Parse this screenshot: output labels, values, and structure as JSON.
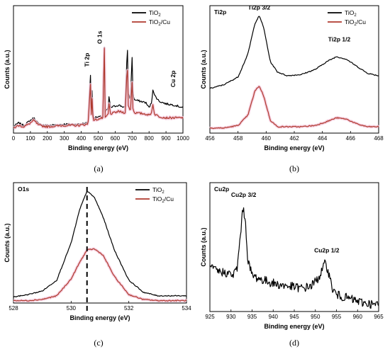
{
  "colors": {
    "tio2": "#000000",
    "tio2cu": "#b03a2e",
    "shadow": "#f3c4d8"
  },
  "chart_data": [
    {
      "id": "a",
      "type": "line",
      "caption": "(a)",
      "xlabel": "Binding energy (eV)",
      "ylabel": "Counts (a.u.)",
      "xlim": [
        0,
        1000
      ],
      "xticks": [
        "0",
        "100",
        "200",
        "300",
        "400",
        "500",
        "600",
        "700",
        "800",
        "900",
        "1000"
      ],
      "legend": {
        "placement": "top-right",
        "entries": [
          [
            "TiO",
            "2",
            ""
          ],
          [
            "TiO",
            "2",
            "/Cu"
          ]
        ]
      },
      "annotations": [
        {
          "text": "Ti 2p",
          "x": 445,
          "y": 0.52,
          "rot": -90
        },
        {
          "text": "O 1s",
          "x": 520,
          "y": 0.7,
          "rot": -90
        },
        {
          "text": "Cu 2p",
          "x": 955,
          "y": 0.36,
          "rot": -90
        }
      ],
      "series": [
        {
          "name": "TiO2",
          "points": [
            [
              0,
              0.05
            ],
            [
              30,
              0.08
            ],
            [
              60,
              0.06
            ],
            [
              90,
              0.09
            ],
            [
              120,
              0.12
            ],
            [
              150,
              0.07
            ],
            [
              200,
              0.06
            ],
            [
              300,
              0.07
            ],
            [
              380,
              0.07
            ],
            [
              440,
              0.08
            ],
            [
              455,
              0.47
            ],
            [
              458,
              0.12
            ],
            [
              463,
              0.35
            ],
            [
              470,
              0.12
            ],
            [
              530,
              0.13
            ],
            [
              535,
              0.86
            ],
            [
              540,
              0.16
            ],
            [
              560,
              0.2
            ],
            [
              565,
              0.32
            ],
            [
              570,
              0.2
            ],
            [
              620,
              0.22
            ],
            [
              660,
              0.2
            ],
            [
              672,
              0.72
            ],
            [
              676,
              0.32
            ],
            [
              690,
              0.26
            ],
            [
              700,
              0.6
            ],
            [
              705,
              0.3
            ],
            [
              715,
              0.26
            ],
            [
              780,
              0.24
            ],
            [
              800,
              0.2
            ],
            [
              815,
              0.24
            ],
            [
              824,
              0.36
            ],
            [
              830,
              0.3
            ],
            [
              860,
              0.25
            ],
            [
              900,
              0.23
            ],
            [
              950,
              0.22
            ],
            [
              1000,
              0.2
            ]
          ]
        },
        {
          "name": "TiO2/Cu",
          "points": [
            [
              0,
              0.04
            ],
            [
              30,
              0.06
            ],
            [
              60,
              0.05
            ],
            [
              90,
              0.07
            ],
            [
              120,
              0.1
            ],
            [
              150,
              0.06
            ],
            [
              200,
              0.05
            ],
            [
              300,
              0.06
            ],
            [
              380,
              0.06
            ],
            [
              440,
              0.07
            ],
            [
              455,
              0.4
            ],
            [
              458,
              0.1
            ],
            [
              463,
              0.28
            ],
            [
              470,
              0.1
            ],
            [
              530,
              0.12
            ],
            [
              535,
              0.86
            ],
            [
              540,
              0.12
            ],
            [
              560,
              0.15
            ],
            [
              565,
              0.26
            ],
            [
              570,
              0.15
            ],
            [
              620,
              0.17
            ],
            [
              660,
              0.16
            ],
            [
              672,
              0.56
            ],
            [
              676,
              0.22
            ],
            [
              690,
              0.17
            ],
            [
              700,
              0.4
            ],
            [
              705,
              0.18
            ],
            [
              715,
              0.16
            ],
            [
              780,
              0.15
            ],
            [
              800,
              0.14
            ],
            [
              815,
              0.16
            ],
            [
              824,
              0.24
            ],
            [
              830,
              0.15
            ],
            [
              860,
              0.13
            ],
            [
              900,
              0.12
            ],
            [
              950,
              0.12
            ],
            [
              1000,
              0.12
            ]
          ]
        }
      ]
    },
    {
      "id": "b",
      "type": "line",
      "caption": "(b)",
      "xlabel": "Binding energy (eV)",
      "ylabel": "Counts (a.u.)",
      "xlim": [
        456,
        468
      ],
      "xticks": [
        "456",
        "458",
        "460",
        "462",
        "464",
        "466",
        "468"
      ],
      "panel_label": "Ti2p",
      "legend": {
        "placement": "top-right",
        "entries": [
          [
            "TiO",
            "2",
            ""
          ],
          [
            "TiO",
            "2",
            "/Cu"
          ]
        ]
      },
      "annotations": [
        {
          "text": "Ti2p 3/2",
          "x": 459.5,
          "y": 0.97,
          "rot": 0
        },
        {
          "text": "Ti2p 1/2",
          "x": 465.2,
          "y": 0.72,
          "rot": 0
        }
      ],
      "series": [
        {
          "name": "TiO2",
          "points": [
            [
              456,
              0.35
            ],
            [
              457,
              0.38
            ],
            [
              458,
              0.44
            ],
            [
              458.7,
              0.62
            ],
            [
              459.2,
              0.86
            ],
            [
              459.5,
              0.92
            ],
            [
              459.8,
              0.84
            ],
            [
              460.3,
              0.56
            ],
            [
              460.8,
              0.48
            ],
            [
              461.5,
              0.45
            ],
            [
              462.5,
              0.46
            ],
            [
              463.5,
              0.5
            ],
            [
              464.3,
              0.56
            ],
            [
              465,
              0.6
            ],
            [
              465.7,
              0.58
            ],
            [
              466.5,
              0.52
            ],
            [
              467.2,
              0.47
            ],
            [
              468,
              0.45
            ]
          ]
        },
        {
          "name": "TiO2/Cu",
          "points": [
            [
              456,
              0.04
            ],
            [
              457,
              0.04
            ],
            [
              458,
              0.06
            ],
            [
              458.7,
              0.14
            ],
            [
              459.2,
              0.33
            ],
            [
              459.5,
              0.37
            ],
            [
              459.8,
              0.3
            ],
            [
              460.3,
              0.1
            ],
            [
              460.8,
              0.05
            ],
            [
              461.5,
              0.05
            ],
            [
              462.5,
              0.05
            ],
            [
              463.5,
              0.06
            ],
            [
              464.3,
              0.09
            ],
            [
              465,
              0.12
            ],
            [
              465.7,
              0.11
            ],
            [
              466.5,
              0.07
            ],
            [
              467.2,
              0.05
            ],
            [
              468,
              0.05
            ]
          ]
        }
      ]
    },
    {
      "id": "c",
      "type": "line",
      "caption": "(c)",
      "xlabel": "Binding energy (eV)",
      "ylabel": "Counts (a.u.)",
      "xlim": [
        528,
        534
      ],
      "xticks": [
        "528",
        "530",
        "532",
        "534"
      ],
      "panel_label": "O1s",
      "vline": 530.55,
      "legend": {
        "placement": "top-right",
        "entries": [
          [
            "TiO",
            "2",
            ""
          ],
          [
            "TiO",
            "2",
            "/Cu"
          ]
        ]
      },
      "annotations": [],
      "series": [
        {
          "name": "TiO2",
          "points": [
            [
              528,
              0.05
            ],
            [
              528.5,
              0.07
            ],
            [
              529,
              0.1
            ],
            [
              529.5,
              0.19
            ],
            [
              530,
              0.5
            ],
            [
              530.3,
              0.78
            ],
            [
              530.55,
              0.93
            ],
            [
              530.8,
              0.88
            ],
            [
              531.1,
              0.72
            ],
            [
              531.5,
              0.44
            ],
            [
              532,
              0.19
            ],
            [
              532.5,
              0.09
            ],
            [
              533,
              0.06
            ],
            [
              534,
              0.06
            ]
          ]
        },
        {
          "name": "TiO2/Cu",
          "points": [
            [
              528,
              0.02
            ],
            [
              528.5,
              0.02
            ],
            [
              529,
              0.03
            ],
            [
              529.5,
              0.06
            ],
            [
              530,
              0.2
            ],
            [
              530.3,
              0.34
            ],
            [
              530.55,
              0.44
            ],
            [
              530.8,
              0.45
            ],
            [
              531.1,
              0.4
            ],
            [
              531.5,
              0.22
            ],
            [
              532,
              0.07
            ],
            [
              532.5,
              0.03
            ],
            [
              533,
              0.02
            ],
            [
              534,
              0.02
            ]
          ]
        }
      ]
    },
    {
      "id": "d",
      "type": "line",
      "caption": "(d)",
      "xlabel": "Binding energy (eV)",
      "ylabel": "Counts (a.u.)",
      "xlim": [
        925,
        965
      ],
      "xticks": [
        "925",
        "930",
        "935",
        "940",
        "945",
        "950",
        "955",
        "960",
        "965"
      ],
      "panel_label": "Cu2p",
      "annotations": [
        {
          "text": "Cu2p 3/2",
          "x": 933,
          "y": 0.89,
          "rot": 0
        },
        {
          "text": "Cu2p 1/2",
          "x": 952.7,
          "y": 0.46,
          "rot": 0
        }
      ],
      "series": [
        {
          "name": "Cu2p",
          "points": [
            [
              925,
              0.34
            ],
            [
              927,
              0.31
            ],
            [
              929,
              0.3
            ],
            [
              930.5,
              0.28
            ],
            [
              931.5,
              0.34
            ],
            [
              932.3,
              0.62
            ],
            [
              932.9,
              0.82
            ],
            [
              933.4,
              0.7
            ],
            [
              934,
              0.4
            ],
            [
              935,
              0.28
            ],
            [
              937,
              0.25
            ],
            [
              939,
              0.23
            ],
            [
              941,
              0.21
            ],
            [
              943,
              0.2
            ],
            [
              945,
              0.19
            ],
            [
              947,
              0.18
            ],
            [
              949,
              0.2
            ],
            [
              950.5,
              0.25
            ],
            [
              951.5,
              0.31
            ],
            [
              952.4,
              0.38
            ],
            [
              953,
              0.32
            ],
            [
              954,
              0.18
            ],
            [
              955,
              0.13
            ],
            [
              957,
              0.11
            ],
            [
              959,
              0.09
            ],
            [
              961,
              0.07
            ],
            [
              963,
              0.06
            ],
            [
              964,
              0.05
            ]
          ]
        }
      ]
    }
  ]
}
